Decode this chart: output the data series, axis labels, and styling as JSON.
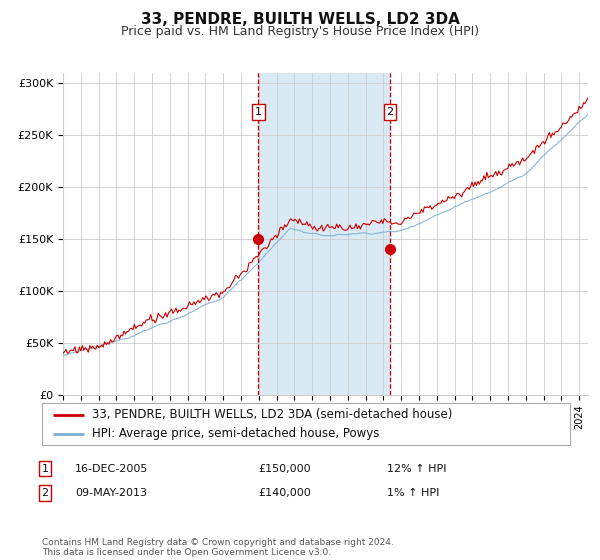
{
  "title": "33, PENDRE, BUILTH WELLS, LD2 3DA",
  "subtitle": "Price paid vs. HM Land Registry's House Price Index (HPI)",
  "ylabel_ticks": [
    "£0",
    "£50K",
    "£100K",
    "£150K",
    "£200K",
    "£250K",
    "£300K"
  ],
  "ytick_values": [
    0,
    50000,
    100000,
    150000,
    200000,
    250000,
    300000
  ],
  "ylim": [
    0,
    310000
  ],
  "xlim_start": 1995.0,
  "xlim_end": 2024.5,
  "red_line_color": "#cc0000",
  "blue_line_color": "#7bafd4",
  "background_color": "#ffffff",
  "plot_bg_color": "#ffffff",
  "grid_color": "#cccccc",
  "shade_color": "#daeaf5",
  "vline1_x": 2005.97,
  "vline2_x": 2013.37,
  "marker1_x": 2005.97,
  "marker1_y": 150000,
  "marker2_x": 2013.37,
  "marker2_y": 140000,
  "legend_line1": "33, PENDRE, BUILTH WELLS, LD2 3DA (semi-detached house)",
  "legend_line2": "HPI: Average price, semi-detached house, Powys",
  "table_row1": [
    "1",
    "16-DEC-2005",
    "£150,000",
    "12% ↑ HPI"
  ],
  "table_row2": [
    "2",
    "09-MAY-2013",
    "£140,000",
    "1% ↑ HPI"
  ],
  "footer": "Contains HM Land Registry data © Crown copyright and database right 2024.\nThis data is licensed under the Open Government Licence v3.0.",
  "title_fontsize": 11,
  "subtitle_fontsize": 9,
  "tick_fontsize": 8,
  "legend_fontsize": 8.5
}
